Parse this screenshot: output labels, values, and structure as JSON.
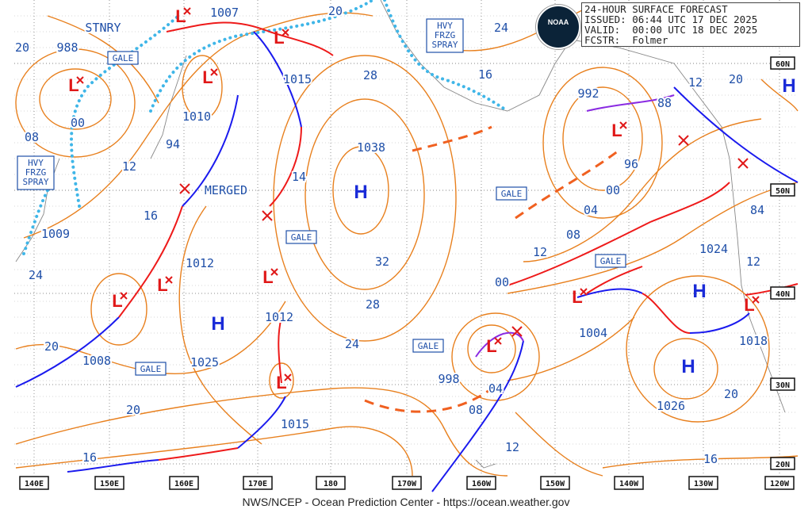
{
  "header": {
    "title": "24-HOUR SURFACE FORECAST",
    "issued_label": "ISSUED:",
    "issued": "06:44 UTC 17 DEC 2025",
    "valid_label": "VALID:",
    "valid": "00:00 UTC 18 DEC 2025",
    "forecaster_label": "FCSTR:",
    "forecaster": "Folmer"
  },
  "logo": "NOAA",
  "footer": "NWS/NCEP - Ocean Prediction Center - https://ocean.weather.gov",
  "longitude_labels": [
    "140E",
    "150E",
    "160E",
    "170E",
    "180",
    "170W",
    "160W",
    "150W",
    "140W",
    "130W",
    "120W"
  ],
  "latitude_labels": [
    "60N",
    "50N",
    "40N",
    "30N",
    "20N"
  ],
  "pressure_labels": [
    "988",
    "1007",
    "1015",
    "1010",
    "94",
    "1038",
    "14",
    "MERGED",
    "1009",
    "1012",
    "1012",
    "1025",
    "1008",
    "998",
    "1004",
    "1015",
    "1026",
    "1018",
    "1024",
    "84",
    "88",
    "992",
    "96",
    "00",
    "04",
    "08",
    "12",
    "00",
    "04",
    "08",
    "12",
    "16",
    "24",
    "28",
    "32",
    "28",
    "24",
    "20",
    "20",
    "12",
    "20",
    "16",
    "16",
    "20",
    "20",
    "24",
    "16",
    "12",
    "08",
    "00",
    "20",
    "12",
    "STNRY"
  ],
  "boxed_labels": [
    "GALE",
    "GALE",
    "GALE",
    "GALE",
    "GALE",
    "GALE"
  ],
  "spray_labels": [
    [
      "HVY",
      "FRZG",
      "SPRAY"
    ],
    [
      "HVY",
      "FRZG",
      "SPRAY"
    ]
  ],
  "high_centers": [
    "H",
    "H",
    "H",
    "H",
    "H"
  ],
  "low_centers": [
    "L",
    "L",
    "L",
    "L",
    "L",
    "L",
    "L",
    "L",
    "L",
    "L",
    "L",
    "L"
  ],
  "colors": {
    "isobar": "#e8801e",
    "cold_front": "#1a1aee",
    "warm_front": "#ee1a1a",
    "occluded": "#8a2be2",
    "ice": "#3fb6e8",
    "label": "#1f4fa8"
  }
}
